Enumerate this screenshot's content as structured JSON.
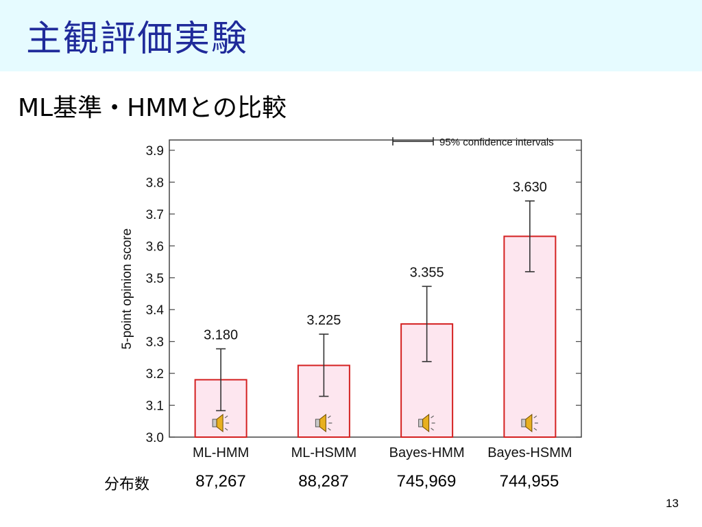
{
  "slide": {
    "title": "主観評価実験",
    "subtitle": "ML基準・HMMとの比較",
    "page_number": "13",
    "title_color": "#1f2a9a",
    "title_bar_color": "#e6fbff"
  },
  "counts": {
    "label": "分布数",
    "values": [
      "87,267",
      "88,287",
      "745,969",
      "744,955"
    ]
  },
  "chart_data": {
    "type": "bar",
    "categories": [
      "ML-HMM",
      "ML-HSMM",
      "Bayes-HMM",
      "Bayes-HSMM"
    ],
    "values": [
      3.18,
      3.225,
      3.355,
      3.63
    ],
    "value_labels": [
      "3.180",
      "3.225",
      "3.355",
      "3.630"
    ],
    "ci_low": [
      3.083,
      3.128,
      3.237,
      3.519
    ],
    "ci_high": [
      3.277,
      3.323,
      3.473,
      3.741
    ],
    "ylabel": "5-point opinion score",
    "ylim": [
      3.0,
      3.9
    ],
    "yticks": [
      "3.0",
      "3.1",
      "3.2",
      "3.3",
      "3.4",
      "3.5",
      "3.6",
      "3.7",
      "3.8",
      "3.9"
    ],
    "legend": {
      "label": "95% confidence intervals",
      "position": "top-right"
    },
    "grid": false,
    "bar_fill": "#fde6ef",
    "bar_stroke": "#d42020",
    "icon": "speaker-icon"
  }
}
